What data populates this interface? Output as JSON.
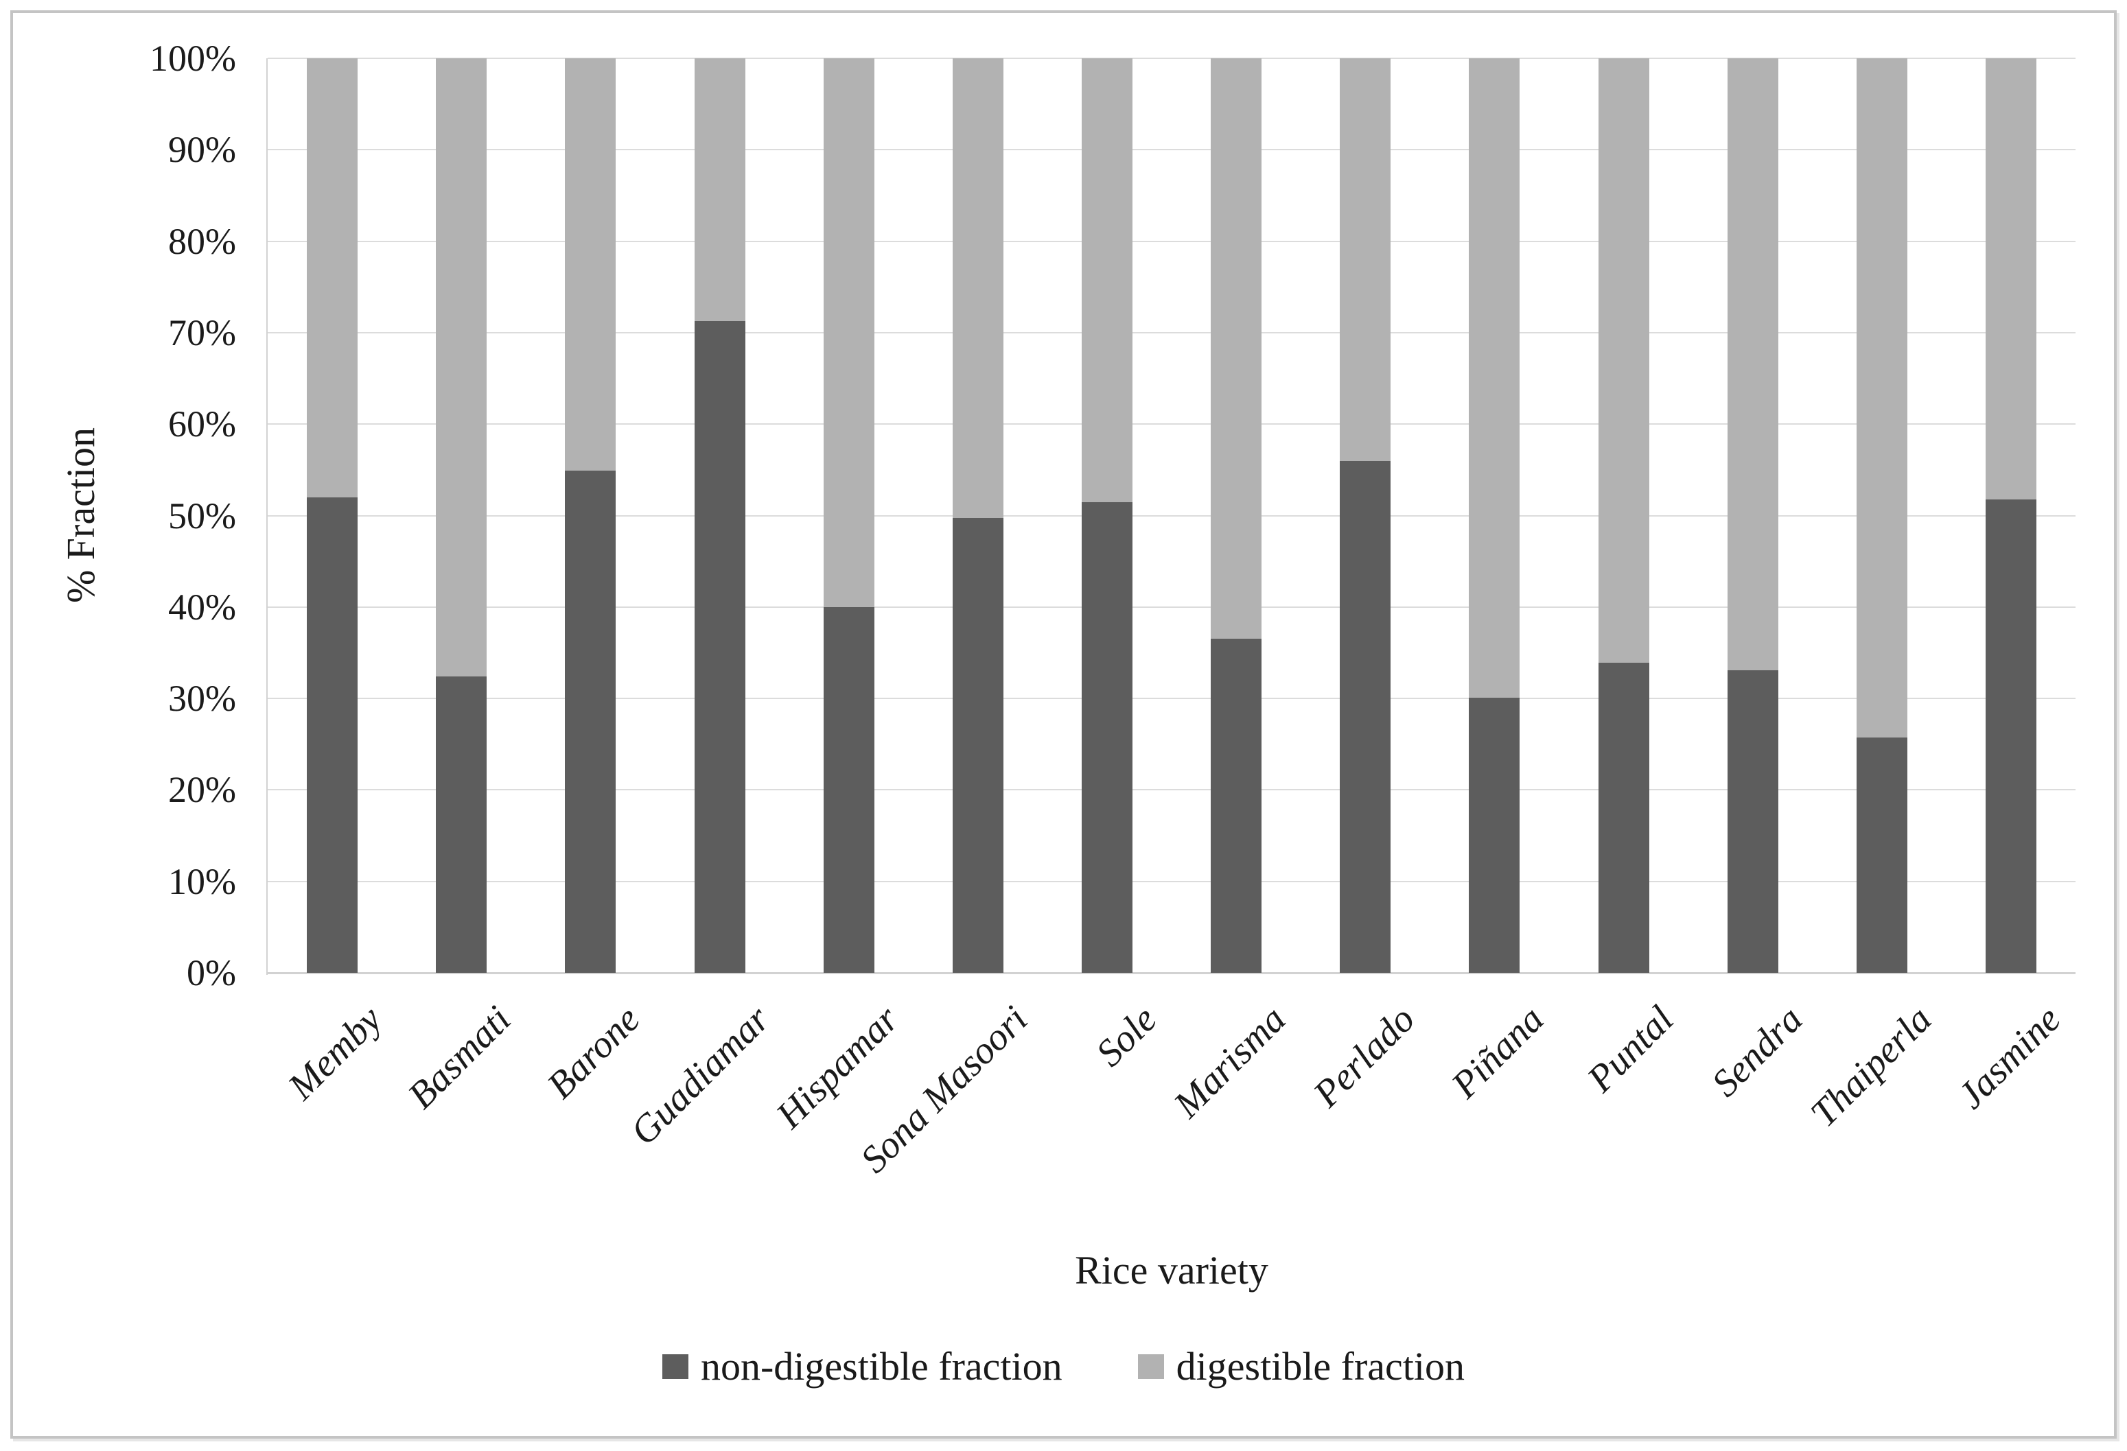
{
  "chart_data": {
    "type": "bar",
    "stacked": true,
    "percent_stacked": true,
    "title": "",
    "xlabel": "Rice variety",
    "ylabel": "% Fraction",
    "ylim": [
      0,
      100
    ],
    "grid": "horizontal",
    "legend_position": "bottom",
    "y_ticks": [
      "0%",
      "10%",
      "20%",
      "30%",
      "40%",
      "50%",
      "60%",
      "70%",
      "80%",
      "90%",
      "100%"
    ],
    "categories": [
      "Memby",
      "Basmati",
      "Barone",
      "Guadiamar",
      "Hispamar",
      "Sona Masoori",
      "Sole",
      "Marisma",
      "Perlado",
      "Piñana",
      "Puntal",
      "Sendra",
      "Thaiperla",
      "Jasmine"
    ],
    "series": [
      {
        "name": "non-digestible fraction",
        "color": "#5d5d5d",
        "values": [
          52.0,
          32.4,
          54.9,
          71.3,
          40.0,
          49.7,
          51.5,
          36.5,
          56.0,
          30.1,
          33.9,
          33.1,
          25.7,
          51.8
        ]
      },
      {
        "name": "digestible fraction",
        "color": "#b2b2b2",
        "values": [
          48.0,
          67.6,
          45.1,
          28.7,
          60.0,
          50.3,
          48.5,
          63.5,
          44.0,
          69.9,
          66.1,
          66.9,
          74.3,
          48.2
        ]
      }
    ]
  },
  "colors": {
    "grid": "#dcdcdc",
    "axis": "#d2d2d2",
    "text": "#1a1a1a",
    "figure_border": "#c4c4c4",
    "background": "#ffffff"
  }
}
